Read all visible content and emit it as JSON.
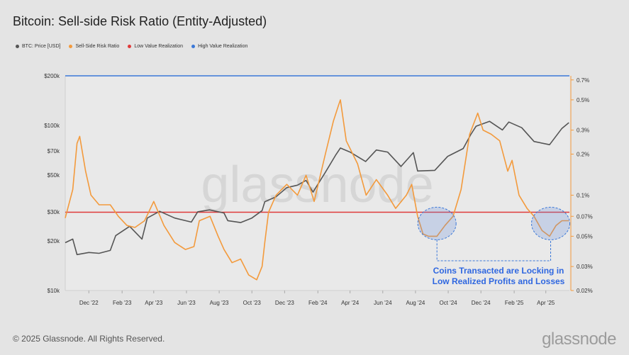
{
  "title": "Bitcoin: Sell-side Risk Ratio (Entity-Adjusted)",
  "legend": [
    {
      "label": "BTC: Price [USD]",
      "color": "#555555"
    },
    {
      "label": "Sell-Side Risk Ratio",
      "color": "#f39a3c"
    },
    {
      "label": "Low Value Realization",
      "color": "#e03a3a"
    },
    {
      "label": "High Value Realization",
      "color": "#3b78d8"
    }
  ],
  "footer": "© 2025 Glassnode. All Rights Reserved.",
  "brand": "glassnode",
  "watermark": "glassnode",
  "annotation": {
    "line1": "Coins Transacted are Locking in",
    "line2": "Low Realized Profits and Losses"
  },
  "chart_data": {
    "type": "line",
    "title": "Bitcoin: Sell-side Risk Ratio (Entity-Adjusted)",
    "x_ticks": [
      "Dec '22",
      "Feb '23",
      "Apr '23",
      "Jun '23",
      "Aug '23",
      "Oct '23",
      "Dec '23",
      "Feb '24",
      "Apr '24",
      "Jun '24",
      "Aug '24",
      "Oct '24",
      "Dec '24",
      "Feb '25",
      "Apr '25"
    ],
    "x_range": [
      "2022-10-18",
      "2025-05-15"
    ],
    "y_left": {
      "scale": "log",
      "range": [
        10000,
        200000
      ],
      "ticks": [
        {
          "v": 10000,
          "label": "$10k"
        },
        {
          "v": 20000,
          "label": "$20k"
        },
        {
          "v": 30000,
          "label": "$30k"
        },
        {
          "v": 50000,
          "label": "$50k"
        },
        {
          "v": 70000,
          "label": "$70k"
        },
        {
          "v": 100000,
          "label": "$100k"
        },
        {
          "v": 200000,
          "label": "$200k"
        }
      ]
    },
    "y_right": {
      "scale": "log",
      "range": [
        0.02,
        0.75
      ],
      "ticks": [
        {
          "v": 0.02,
          "label": "0.02%"
        },
        {
          "v": 0.03,
          "label": "0.03%"
        },
        {
          "v": 0.05,
          "label": "0.05%"
        },
        {
          "v": 0.07,
          "label": "0.07%"
        },
        {
          "v": 0.1,
          "label": "0.1%"
        },
        {
          "v": 0.2,
          "label": "0.2%"
        },
        {
          "v": 0.3,
          "label": "0.3%"
        },
        {
          "v": 0.5,
          "label": "0.5%"
        },
        {
          "v": 0.7,
          "label": "0.7%"
        }
      ]
    },
    "thresholds": [
      {
        "name": "Low Value Realization",
        "value": 0.075,
        "color": "#e03a3a"
      },
      {
        "name": "High Value Realization",
        "value": 0.75,
        "color": "#3b78d8"
      }
    ],
    "series": [
      {
        "name": "BTC: Price [USD]",
        "axis": "left",
        "color": "#555555",
        "points": [
          [
            "2022-10-18",
            19500
          ],
          [
            "2022-11-01",
            20500
          ],
          [
            "2022-11-09",
            16500
          ],
          [
            "2022-12-01",
            17000
          ],
          [
            "2022-12-20",
            16800
          ],
          [
            "2023-01-10",
            17500
          ],
          [
            "2023-01-20",
            21500
          ],
          [
            "2023-02-15",
            24500
          ],
          [
            "2023-03-10",
            20500
          ],
          [
            "2023-03-20",
            27500
          ],
          [
            "2023-04-12",
            30200
          ],
          [
            "2023-05-10",
            27500
          ],
          [
            "2023-06-10",
            26000
          ],
          [
            "2023-06-22",
            30000
          ],
          [
            "2023-07-14",
            30800
          ],
          [
            "2023-08-10",
            29500
          ],
          [
            "2023-08-17",
            26500
          ],
          [
            "2023-09-10",
            25800
          ],
          [
            "2023-10-01",
            27500
          ],
          [
            "2023-10-20",
            30500
          ],
          [
            "2023-10-25",
            34500
          ],
          [
            "2023-11-15",
            37000
          ],
          [
            "2023-12-05",
            42000
          ],
          [
            "2023-12-25",
            43500
          ],
          [
            "2024-01-10",
            46500
          ],
          [
            "2024-01-23",
            39500
          ],
          [
            "2024-02-15",
            52000
          ],
          [
            "2024-03-05",
            66000
          ],
          [
            "2024-03-14",
            73000
          ],
          [
            "2024-04-01",
            69000
          ],
          [
            "2024-04-30",
            60500
          ],
          [
            "2024-05-20",
            71000
          ],
          [
            "2024-06-10",
            69000
          ],
          [
            "2024-07-05",
            56500
          ],
          [
            "2024-07-28",
            68500
          ],
          [
            "2024-08-05",
            53000
          ],
          [
            "2024-09-06",
            53500
          ],
          [
            "2024-09-30",
            65000
          ],
          [
            "2024-10-29",
            72500
          ],
          [
            "2024-11-12",
            88000
          ],
          [
            "2024-11-22",
            99000
          ],
          [
            "2024-12-17",
            106000
          ],
          [
            "2025-01-10",
            94000
          ],
          [
            "2025-01-22",
            105000
          ],
          [
            "2025-02-15",
            97000
          ],
          [
            "2025-03-10",
            80000
          ],
          [
            "2025-04-08",
            76500
          ],
          [
            "2025-05-01",
            96000
          ],
          [
            "2025-05-14",
            104000
          ]
        ]
      },
      {
        "name": "Sell-Side Risk Ratio",
        "axis": "right",
        "color": "#f39a3c",
        "points": [
          [
            "2022-10-18",
            0.068
          ],
          [
            "2022-11-01",
            0.11
          ],
          [
            "2022-11-09",
            0.24
          ],
          [
            "2022-11-14",
            0.27
          ],
          [
            "2022-11-25",
            0.15
          ],
          [
            "2022-12-05",
            0.1
          ],
          [
            "2022-12-20",
            0.085
          ],
          [
            "2023-01-10",
            0.085
          ],
          [
            "2023-01-25",
            0.07
          ],
          [
            "2023-02-10",
            0.06
          ],
          [
            "2023-02-25",
            0.058
          ],
          [
            "2023-03-15",
            0.065
          ],
          [
            "2023-04-01",
            0.09
          ],
          [
            "2023-04-20",
            0.06
          ],
          [
            "2023-05-10",
            0.045
          ],
          [
            "2023-05-30",
            0.04
          ],
          [
            "2023-06-15",
            0.042
          ],
          [
            "2023-06-25",
            0.065
          ],
          [
            "2023-07-15",
            0.07
          ],
          [
            "2023-07-30",
            0.05
          ],
          [
            "2023-08-10",
            0.04
          ],
          [
            "2023-08-25",
            0.032
          ],
          [
            "2023-09-10",
            0.034
          ],
          [
            "2023-09-25",
            0.026
          ],
          [
            "2023-10-10",
            0.024
          ],
          [
            "2023-10-20",
            0.03
          ],
          [
            "2023-10-25",
            0.045
          ],
          [
            "2023-11-01",
            0.075
          ],
          [
            "2023-11-15",
            0.1
          ],
          [
            "2023-12-05",
            0.12
          ],
          [
            "2023-12-25",
            0.1
          ],
          [
            "2024-01-10",
            0.14
          ],
          [
            "2024-01-25",
            0.09
          ],
          [
            "2024-02-15",
            0.2
          ],
          [
            "2024-03-01",
            0.35
          ],
          [
            "2024-03-10",
            0.45
          ],
          [
            "2024-03-14",
            0.5
          ],
          [
            "2024-03-25",
            0.25
          ],
          [
            "2024-04-15",
            0.17
          ],
          [
            "2024-05-01",
            0.1
          ],
          [
            "2024-05-20",
            0.13
          ],
          [
            "2024-06-10",
            0.1
          ],
          [
            "2024-06-25",
            0.08
          ],
          [
            "2024-07-15",
            0.1
          ],
          [
            "2024-07-25",
            0.12
          ],
          [
            "2024-08-05",
            0.07
          ],
          [
            "2024-08-15",
            0.052
          ],
          [
            "2024-08-25",
            0.05
          ],
          [
            "2024-09-10",
            0.05
          ],
          [
            "2024-09-25",
            0.06
          ],
          [
            "2024-10-10",
            0.07
          ],
          [
            "2024-10-25",
            0.11
          ],
          [
            "2024-11-10",
            0.28
          ],
          [
            "2024-11-25",
            0.4
          ],
          [
            "2024-12-05",
            0.3
          ],
          [
            "2024-12-20",
            0.28
          ],
          [
            "2025-01-05",
            0.25
          ],
          [
            "2025-01-20",
            0.15
          ],
          [
            "2025-01-28",
            0.18
          ],
          [
            "2025-02-10",
            0.1
          ],
          [
            "2025-02-25",
            0.08
          ],
          [
            "2025-03-10",
            0.07
          ],
          [
            "2025-03-25",
            0.055
          ],
          [
            "2025-04-08",
            0.05
          ],
          [
            "2025-04-20",
            0.06
          ],
          [
            "2025-05-01",
            0.065
          ],
          [
            "2025-05-14",
            0.065
          ]
        ]
      }
    ],
    "highlights": [
      {
        "center": "2024-09-10",
        "value_right": 0.062
      },
      {
        "center": "2025-04-10",
        "value_right": 0.062
      }
    ]
  }
}
